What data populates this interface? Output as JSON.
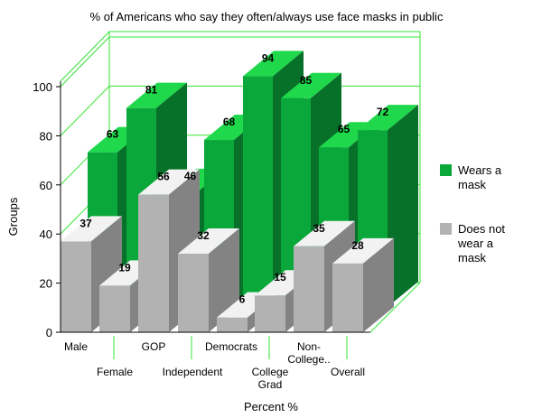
{
  "chart_data": {
    "type": "bar",
    "style": "3d-clustered",
    "title": "% of Americans who say they often/always use face masks in public",
    "xlabel": "Percent %",
    "ylabel": "Groups",
    "ylim": [
      0,
      100
    ],
    "yticks": [
      0,
      20,
      40,
      60,
      80,
      100
    ],
    "grid": true,
    "legend_position": "right",
    "categories": [
      "Male",
      "Female",
      "GOP",
      "Independent",
      "Democrats",
      "College Grad",
      "Non-College..",
      "Overall"
    ],
    "category_label_lines": [
      [
        "Male"
      ],
      [
        "Female"
      ],
      [
        "GOP"
      ],
      [
        "Independent"
      ],
      [
        "Democrats"
      ],
      [
        "College",
        "Grad"
      ],
      [
        "Non-",
        "College.."
      ],
      [
        "Overall"
      ]
    ],
    "series": [
      {
        "name": "Wears a mask",
        "legend_lines": [
          "Wears a",
          "mask"
        ],
        "color": "#0aa83a",
        "top_color": "#1fd84b",
        "side_color": "#07712a",
        "values": [
          63,
          81,
          46,
          68,
          94,
          85,
          65,
          72
        ]
      },
      {
        "name": "Does not wear a mask",
        "legend_lines": [
          "Does not",
          "wear a",
          "mask"
        ],
        "color": "#b2b2b2",
        "top_color": "#f2f2f2",
        "side_color": "#838383",
        "values": [
          37,
          19,
          56,
          32,
          6,
          15,
          35,
          28
        ]
      }
    ],
    "colors": {
      "grid": "#33e633",
      "axis": "#000000"
    }
  }
}
